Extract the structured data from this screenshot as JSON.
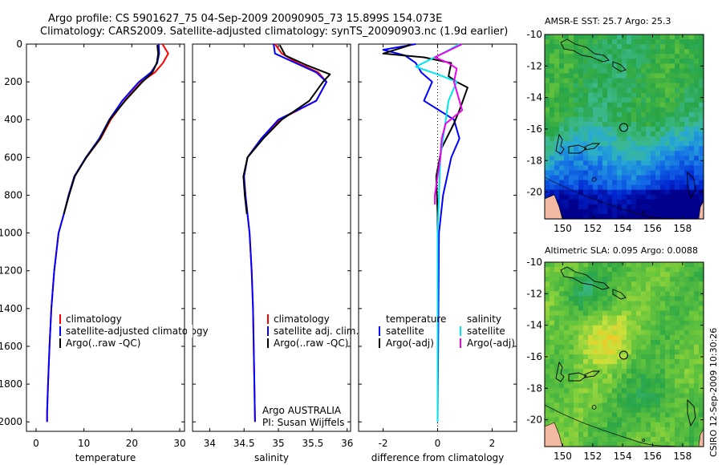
{
  "header": {
    "title_line1": "Argo profile: CS 5901627_75 04-Sep-2009 20090905_73 15.899S 154.073E",
    "title_line2": "Climatology: CARS2009. Satellite-adjusted climatology: synTS_20090903.nc (1.9d earlier)"
  },
  "side_note": "CSIRO 12-Sep-2009 10:30:26",
  "colors": {
    "climatology": "#ff0000",
    "satellite": "#0000ff",
    "argo": "#000000",
    "sat_diff": "#00e5ee",
    "argo_adj": "#ee00ee",
    "land": "#f2b9a3"
  },
  "chart_data": [
    {
      "id": "temperature",
      "type": "line",
      "xlabel": "temperature",
      "xlim": [
        -2,
        31
      ],
      "ylim": [
        0,
        2050
      ],
      "y_inverted": true,
      "xticks": [
        0,
        10,
        20,
        30
      ],
      "yticks": [
        0,
        200,
        400,
        600,
        800,
        1000,
        1200,
        1400,
        1600,
        1800,
        2000
      ],
      "legend": [
        "climatology",
        "satellite-adjusted climatology",
        "Argo(..raw -QC)"
      ],
      "series": [
        {
          "name": "climatology",
          "color": "#ff0000",
          "x": [
            26.4,
            27.6,
            26.5,
            24.8,
            22.0,
            18.5,
            15.6,
            13.5,
            10.5,
            8.0,
            6.8,
            5.8,
            4.7,
            3.8,
            3.2,
            2.8,
            2.5,
            2.3,
            2.3
          ],
          "y": [
            0,
            50,
            100,
            150,
            200,
            300,
            400,
            500,
            600,
            700,
            800,
            900,
            1000,
            1200,
            1400,
            1600,
            1800,
            1950,
            2000
          ]
        },
        {
          "name": "satellite",
          "color": "#0000ff",
          "x": [
            25.6,
            25.7,
            25.3,
            24.0,
            21.5,
            18.0,
            15.3,
            13.2,
            10.4,
            8.0,
            6.8,
            5.8,
            4.7,
            3.8,
            3.2,
            2.8,
            2.5,
            2.3,
            2.3
          ],
          "y": [
            0,
            50,
            100,
            150,
            200,
            300,
            400,
            500,
            600,
            700,
            800,
            900,
            1000,
            1200,
            1400,
            1600,
            1800,
            1950,
            2000
          ]
        },
        {
          "name": "argo",
          "color": "#000000",
          "x": [
            25.3,
            25.5,
            25.2,
            24.3,
            22.2,
            18.6,
            15.4,
            13.4,
            10.5,
            8.1,
            6.9,
            5.8
          ],
          "y": [
            5,
            50,
            100,
            150,
            200,
            300,
            400,
            500,
            600,
            700,
            800,
            900
          ]
        }
      ]
    },
    {
      "id": "salinity",
      "type": "line",
      "xlabel": "salinity",
      "xlim": [
        33.75,
        36.05
      ],
      "ylim": [
        0,
        2050
      ],
      "y_inverted": true,
      "xticks": [
        34,
        34.5,
        35,
        35.5,
        36
      ],
      "legend": [
        "climatology",
        "satellite adj. clim.",
        "Argo(..raw -QC)"
      ],
      "annotation": [
        "Argo AUSTRALIA",
        "PI: Susan Wijffels"
      ],
      "series": [
        {
          "name": "climatology",
          "color": "#ff0000",
          "x": [
            34.95,
            35.05,
            35.28,
            35.58,
            35.7,
            35.55,
            35.02,
            34.75,
            34.55,
            34.5,
            34.52,
            34.55,
            34.58,
            34.61,
            34.63,
            34.65,
            34.66
          ],
          "y": [
            0,
            50,
            100,
            150,
            200,
            300,
            400,
            500,
            600,
            700,
            800,
            900,
            1000,
            1200,
            1400,
            1800,
            2000
          ]
        },
        {
          "name": "satellite",
          "color": "#0000ff",
          "x": [
            34.93,
            34.95,
            35.25,
            35.55,
            35.7,
            35.55,
            35.0,
            34.75,
            34.55,
            34.5,
            34.52,
            34.55,
            34.58,
            34.61,
            34.63,
            34.65,
            34.66
          ],
          "y": [
            0,
            50,
            100,
            150,
            200,
            300,
            400,
            500,
            600,
            700,
            800,
            900,
            1000,
            1200,
            1400,
            1800,
            2000
          ]
        },
        {
          "name": "argo",
          "color": "#000000",
          "x": [
            35.02,
            35.1,
            35.4,
            35.75,
            35.65,
            35.45,
            35.05,
            34.78,
            34.55,
            34.49,
            34.51,
            34.54
          ],
          "y": [
            5,
            60,
            110,
            160,
            200,
            300,
            400,
            500,
            600,
            700,
            800,
            900
          ]
        }
      ]
    },
    {
      "id": "difference",
      "type": "line",
      "xlabel": "difference from climatology",
      "xlim": [
        -2.9,
        2.9
      ],
      "ylim": [
        0,
        2050
      ],
      "y_inverted": true,
      "xticks": [
        -2,
        0,
        2
      ],
      "legend_temperature": [
        "temperature",
        "satellite",
        "Argo(-adj)"
      ],
      "legend_salinity": [
        "salinity",
        "satellite",
        "Argo(-adj)"
      ],
      "series": [
        {
          "name": "temperature satellite",
          "color": "#0000ff",
          "x": [
            -0.8,
            -2.0,
            -1.2,
            -0.8,
            -0.6,
            -0.2,
            -0.5,
            0.6,
            0.8,
            0.5,
            0.2,
            0.05,
            0.0
          ],
          "y": [
            0,
            30,
            60,
            100,
            150,
            200,
            300,
            400,
            500,
            600,
            800,
            1000,
            2000
          ]
        },
        {
          "name": "temperature argo",
          "color": "#000000",
          "x": [
            -1.0,
            -2.0,
            -0.5,
            0.5,
            0.4,
            0.7,
            1.1,
            0.8,
            0.6,
            0.15,
            -0.05,
            0.0,
            0.0
          ],
          "y": [
            5,
            50,
            70,
            100,
            170,
            200,
            230,
            350,
            420,
            550,
            700,
            900,
            2000
          ]
        },
        {
          "name": "salinity satellite",
          "color": "#00e5ee",
          "x": [
            0.8,
            0.3,
            -0.8,
            0.0,
            0.7,
            0.4,
            0.3,
            0.2,
            0.1,
            0.05,
            0.0,
            0.0,
            0.0
          ],
          "y": [
            0,
            40,
            120,
            160,
            200,
            300,
            400,
            500,
            600,
            800,
            1000,
            1500,
            2000
          ]
        },
        {
          "name": "salinity argo",
          "color": "#ee00ee",
          "x": [
            0.9,
            -0.1,
            0.4,
            0.7,
            0.6,
            0.9,
            0.3,
            0.15,
            0.1,
            0.0,
            -0.1,
            -0.1
          ],
          "y": [
            0,
            70,
            100,
            130,
            200,
            350,
            420,
            500,
            600,
            700,
            800,
            850
          ]
        }
      ]
    },
    {
      "id": "sst_map",
      "type": "heatmap",
      "title": "AMSR-E SST: 25.7  Argo: 25.3",
      "xlim": [
        148.8,
        159.4
      ],
      "ylim": [
        -21.7,
        -10
      ],
      "xticks": [
        150,
        152,
        154,
        156,
        158
      ],
      "yticks": [
        -10,
        -12,
        -14,
        -16,
        -18,
        -20
      ],
      "argo_position": {
        "lon": 154.073,
        "lat": -15.899
      }
    },
    {
      "id": "sla_map",
      "type": "heatmap",
      "title": "Altimetric SLA: 0.095  Argo: 0.0088",
      "xlim": [
        148.8,
        159.4
      ],
      "ylim": [
        -21.7,
        -10
      ],
      "xticks": [
        150,
        152,
        154,
        156,
        158
      ],
      "yticks": [
        -10,
        -12,
        -14,
        -16,
        -18,
        -20
      ],
      "argo_position": {
        "lon": 154.073,
        "lat": -15.899
      }
    }
  ]
}
